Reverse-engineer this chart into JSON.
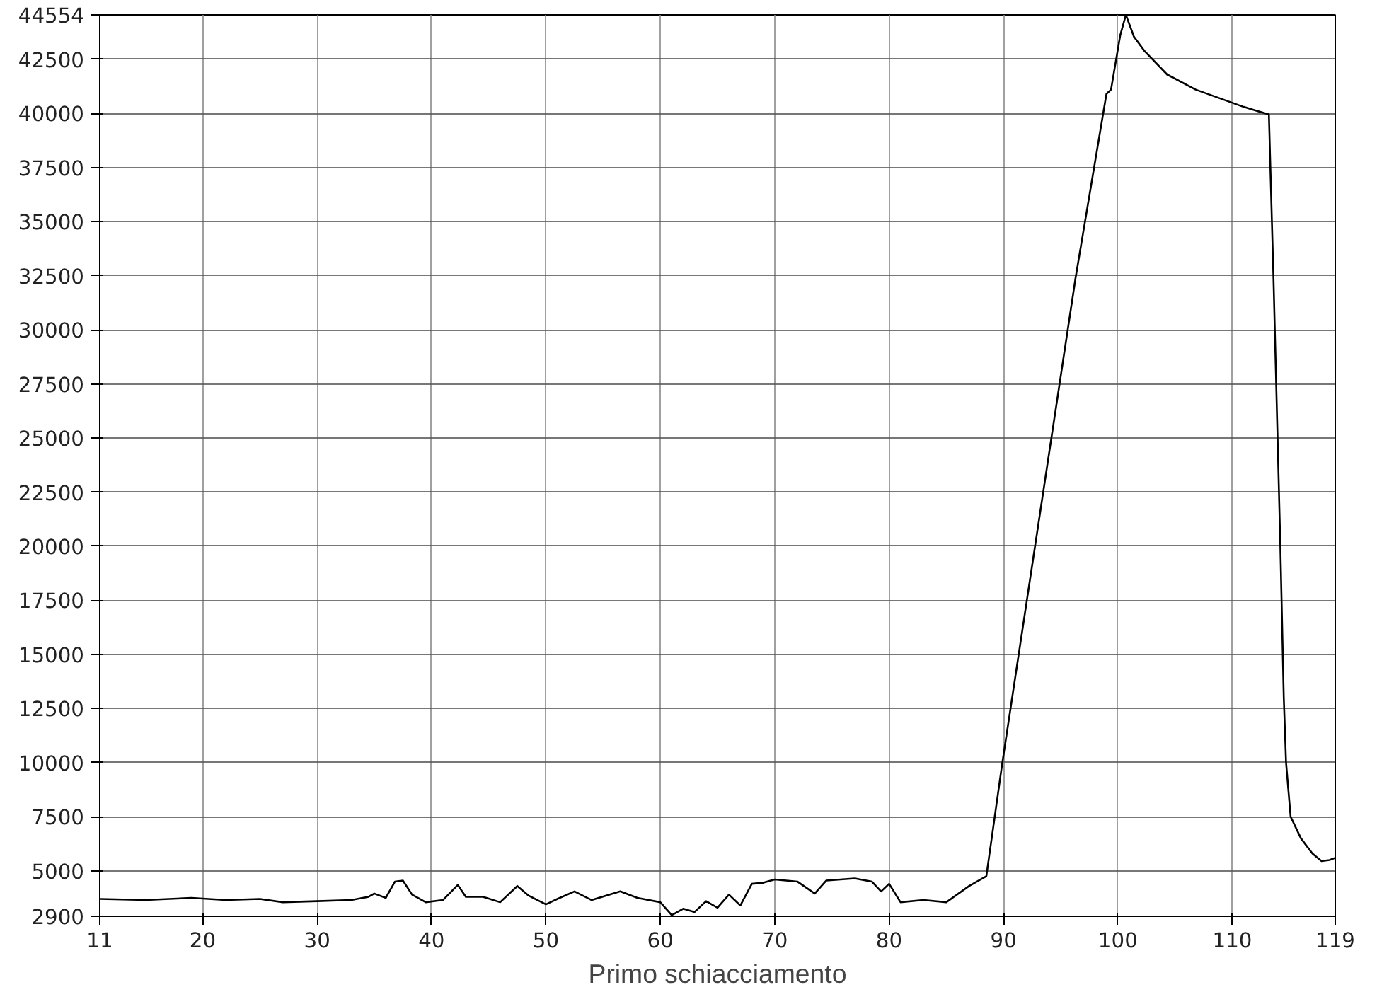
{
  "chart_data": {
    "type": "line",
    "xlabel": "Primo schiacciamento",
    "xlim": [
      11,
      119
    ],
    "xticks": [
      11,
      20,
      30,
      40,
      50,
      60,
      70,
      80,
      90,
      100,
      110,
      119
    ],
    "ylim": [
      2900,
      44554
    ],
    "yticks": [
      2900,
      5000,
      7500,
      10000,
      12500,
      15000,
      17500,
      20000,
      22500,
      25000,
      27500,
      30000,
      32500,
      35000,
      37500,
      40000,
      42500,
      44554
    ],
    "grid": true,
    "marker": "none",
    "line_style": "solid",
    "series": [
      {
        "color": "#000000",
        "x": [
          11,
          15,
          19,
          22,
          25,
          27,
          30,
          33,
          34.5,
          35,
          36,
          36.8,
          37.5,
          38.3,
          39.5,
          41,
          42.3,
          43,
          44.5,
          46,
          47.5,
          48.5,
          50,
          51,
          52.5,
          54,
          56.5,
          58,
          60,
          61,
          62,
          63,
          64,
          65,
          66,
          67,
          68,
          69,
          70,
          72,
          73.5,
          74.5,
          77,
          78.5,
          79.3,
          80,
          81,
          83,
          85,
          87,
          88.5,
          89.9,
          96.3,
          99.0,
          99.4,
          100.2,
          100.7,
          101.4,
          102.3,
          104.3,
          106.8,
          108.9,
          111,
          113.2,
          113.6,
          114.2,
          114.5,
          114.7,
          115.1,
          116,
          117,
          117.8,
          118.5,
          119
        ],
        "values": [
          3700,
          3650,
          3750,
          3650,
          3700,
          3550,
          3600,
          3650,
          3800,
          3950,
          3750,
          4500,
          4550,
          3900,
          3550,
          3650,
          4350,
          3800,
          3800,
          3550,
          4300,
          3850,
          3450,
          3700,
          4050,
          3650,
          4050,
          3750,
          3550,
          2950,
          3250,
          3100,
          3600,
          3300,
          3900,
          3400,
          4400,
          4450,
          4600,
          4500,
          3950,
          4550,
          4650,
          4500,
          4050,
          4400,
          3550,
          3650,
          3550,
          4300,
          4750,
          10000,
          32400,
          40900,
          41100,
          43600,
          44554,
          43550,
          42900,
          41800,
          41100,
          40700,
          40300,
          39950,
          32400,
          20000,
          13000,
          10000,
          7500,
          6500,
          5800,
          5450,
          5500,
          5600
        ]
      }
    ]
  }
}
